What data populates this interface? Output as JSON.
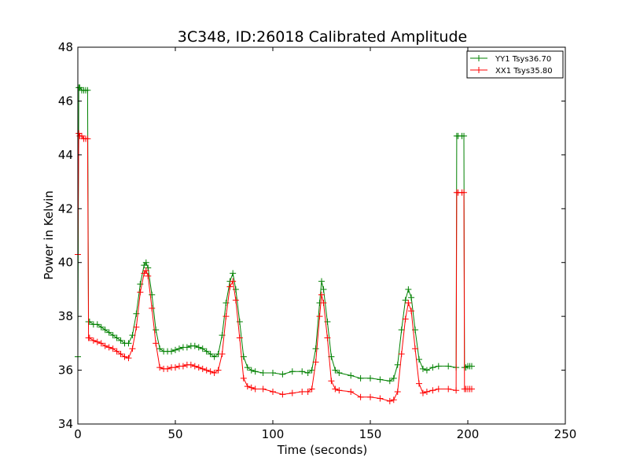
{
  "chart_data": {
    "type": "line",
    "title": "3C348, ID:26018 Calibrated Amplitude",
    "xlabel": "Time (seconds)",
    "ylabel": "Power in Kelvin",
    "xlim": [
      0,
      250
    ],
    "ylim": [
      34,
      48
    ],
    "xticks": [
      0,
      50,
      100,
      150,
      200,
      250
    ],
    "yticks": [
      34,
      36,
      38,
      40,
      42,
      44,
      46,
      48
    ],
    "grid": false,
    "legend_position": "top-right",
    "marker": "+",
    "series": [
      {
        "name": "YY1 Tsys36.70",
        "color": "#008000",
        "x": [
          0,
          0.5,
          1,
          2,
          3,
          4,
          5,
          5.5,
          6,
          8,
          10,
          12,
          14,
          16,
          18,
          20,
          22,
          24,
          26,
          28,
          30,
          32,
          34,
          35,
          36,
          38,
          40,
          42,
          44,
          46,
          48,
          50,
          52,
          54,
          56,
          58,
          60,
          62,
          64,
          66,
          68,
          70,
          72,
          74,
          76,
          78,
          79.5,
          81,
          83,
          85,
          87,
          89,
          91,
          95,
          100,
          105,
          110,
          115,
          118,
          120,
          122,
          124,
          125,
          126,
          128,
          130,
          132,
          134,
          140,
          145,
          150,
          155,
          160,
          162,
          164,
          166,
          168,
          169.5,
          171,
          173,
          175,
          177,
          179,
          182,
          185,
          190,
          194,
          194.3,
          195,
          197,
          198,
          198.3,
          199,
          200,
          201,
          202
        ],
        "values": [
          36.5,
          46.5,
          46.5,
          46.4,
          46.4,
          46.4,
          46.4,
          37.8,
          37.8,
          37.7,
          37.7,
          37.6,
          37.5,
          37.4,
          37.3,
          37.2,
          37.1,
          37.0,
          37.0,
          37.3,
          38.1,
          39.2,
          39.9,
          40.0,
          39.8,
          38.8,
          37.5,
          36.8,
          36.7,
          36.7,
          36.7,
          36.75,
          36.8,
          36.85,
          36.85,
          36.9,
          36.9,
          36.85,
          36.8,
          36.7,
          36.6,
          36.5,
          36.6,
          37.3,
          38.5,
          39.3,
          39.6,
          39.0,
          37.8,
          36.5,
          36.1,
          36.0,
          35.95,
          35.9,
          35.9,
          35.85,
          35.95,
          35.95,
          35.9,
          36.0,
          36.8,
          38.5,
          39.3,
          39.0,
          37.8,
          36.5,
          36.0,
          35.9,
          35.8,
          35.7,
          35.7,
          35.65,
          35.6,
          35.7,
          36.2,
          37.5,
          38.6,
          39.0,
          38.7,
          37.5,
          36.4,
          36.05,
          36.0,
          36.1,
          36.15,
          36.15,
          36.1,
          44.7,
          44.7,
          44.7,
          44.7,
          36.1,
          36.1,
          36.15,
          36.15,
          36.15
        ]
      },
      {
        "name": "XX1 Tsys35.80",
        "color": "#ff0000",
        "x": [
          0,
          0.5,
          1,
          2,
          3,
          4,
          5,
          5.5,
          6,
          8,
          10,
          12,
          14,
          16,
          18,
          20,
          22,
          24,
          26,
          28,
          30,
          32,
          34,
          35,
          36,
          38,
          40,
          42,
          44,
          46,
          48,
          50,
          52,
          54,
          56,
          58,
          60,
          62,
          64,
          66,
          68,
          70,
          72,
          74,
          76,
          78,
          79.5,
          81,
          83,
          85,
          87,
          89,
          91,
          95,
          100,
          105,
          110,
          115,
          118,
          120,
          122,
          124,
          125,
          126,
          128,
          130,
          132,
          134,
          140,
          145,
          150,
          155,
          160,
          162,
          164,
          166,
          168,
          169.5,
          171,
          173,
          175,
          177,
          179,
          182,
          185,
          190,
          194,
          194.3,
          195,
          197,
          198,
          198.3,
          199,
          200,
          201,
          202
        ],
        "values": [
          40.3,
          44.8,
          44.7,
          44.7,
          44.6,
          44.6,
          44.6,
          37.2,
          37.2,
          37.1,
          37.05,
          37.0,
          36.9,
          36.85,
          36.8,
          36.7,
          36.6,
          36.5,
          36.45,
          36.8,
          37.6,
          38.9,
          39.6,
          39.7,
          39.5,
          38.3,
          37.0,
          36.1,
          36.05,
          36.05,
          36.1,
          36.1,
          36.15,
          36.15,
          36.2,
          36.2,
          36.15,
          36.1,
          36.05,
          36.0,
          35.95,
          35.9,
          36.0,
          36.6,
          38.0,
          39.1,
          39.3,
          38.6,
          37.2,
          35.7,
          35.4,
          35.35,
          35.3,
          35.3,
          35.2,
          35.1,
          35.15,
          35.2,
          35.2,
          35.3,
          36.3,
          38.0,
          38.8,
          38.5,
          37.2,
          35.6,
          35.3,
          35.25,
          35.2,
          35.0,
          35.0,
          34.95,
          34.85,
          34.9,
          35.2,
          36.6,
          37.9,
          38.5,
          38.2,
          36.8,
          35.5,
          35.15,
          35.2,
          35.25,
          35.3,
          35.3,
          35.25,
          42.6,
          42.6,
          42.6,
          42.6,
          35.3,
          35.3,
          35.3,
          35.3,
          35.3
        ]
      }
    ]
  }
}
